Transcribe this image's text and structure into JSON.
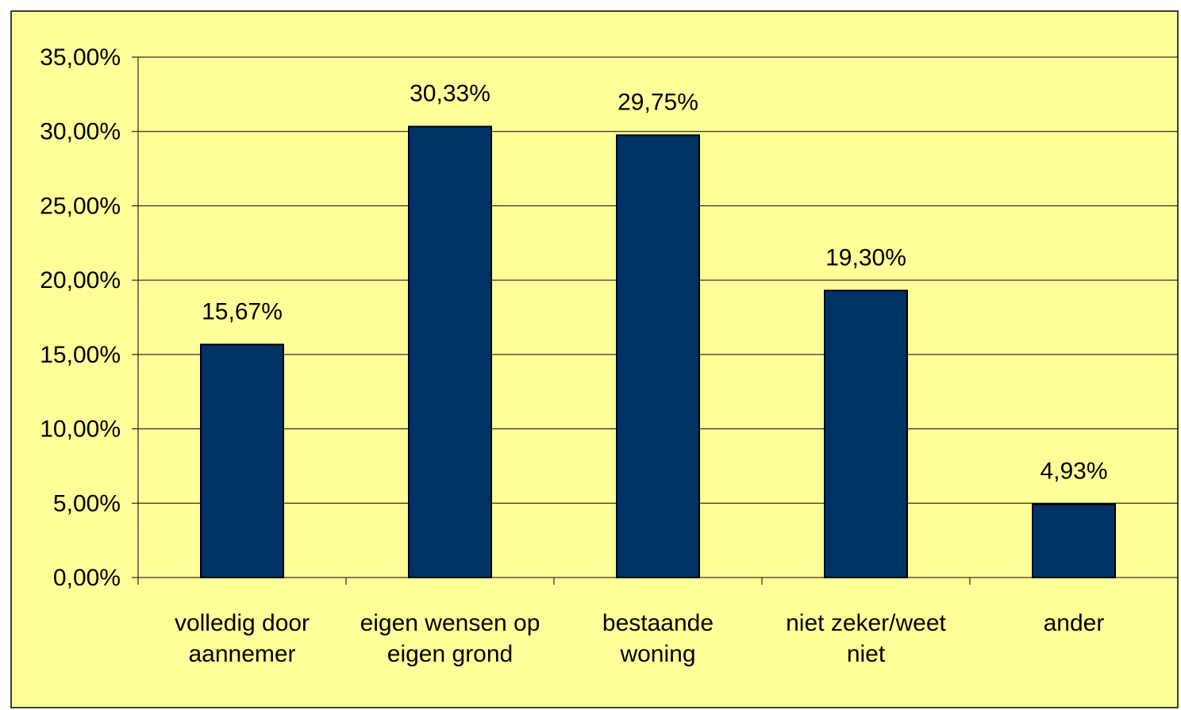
{
  "colors": {
    "background": "#ffff99",
    "bar_fill": "#003366",
    "bar_stroke": "#000000",
    "grid": "#000000",
    "text": "#000000"
  },
  "chart_data": {
    "type": "bar",
    "title": "",
    "xlabel": "",
    "ylabel": "",
    "categories": [
      [
        "volledig door",
        "aannemer"
      ],
      [
        "eigen wensen op",
        "eigen grond"
      ],
      [
        "bestaande",
        "woning"
      ],
      [
        "niet zeker/weet",
        "niet"
      ],
      [
        "ander"
      ]
    ],
    "values": [
      15.67,
      30.33,
      29.75,
      19.3,
      4.93
    ],
    "value_labels": [
      "15,67%",
      "30,33%",
      "29,75%",
      "19,30%",
      "4,93%"
    ],
    "ylim": [
      0,
      35
    ],
    "yticks": [
      0,
      5,
      10,
      15,
      20,
      25,
      30,
      35
    ],
    "ytick_labels": [
      "0,00%",
      "5,00%",
      "10,00%",
      "15,00%",
      "20,00%",
      "25,00%",
      "30,00%",
      "35,00%"
    ],
    "grid": true,
    "legend": "none"
  }
}
